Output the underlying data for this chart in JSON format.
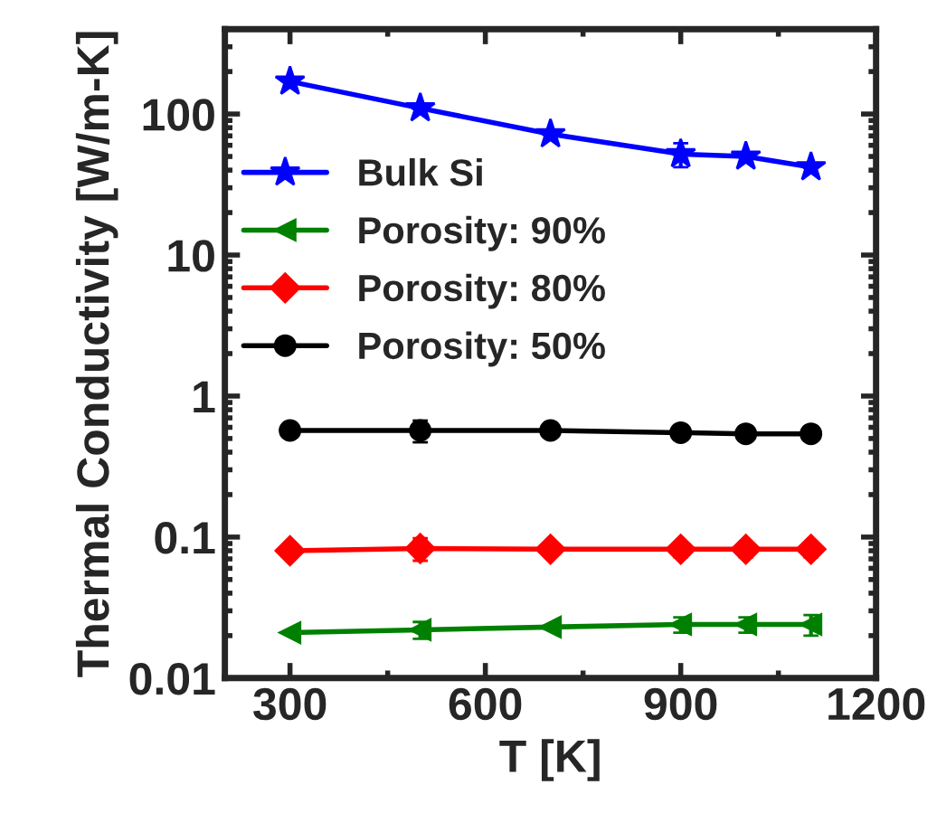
{
  "chart_data": {
    "type": "line",
    "xlabel": "T [K]",
    "ylabel": "Thermal Conductivity [W/m-K]",
    "log": "y",
    "x": [
      300,
      500,
      700,
      900,
      1000,
      1100
    ],
    "xlim": [
      200,
      1200
    ],
    "xticks": [
      300,
      600,
      900,
      1200
    ],
    "ylim": [
      0.01,
      400
    ],
    "yticks": [
      {
        "value": 0.01,
        "label": "0.01"
      },
      {
        "value": 0.1,
        "label": "0.1"
      },
      1,
      10,
      100
    ],
    "grid": false,
    "legend": "top left",
    "series": [
      {
        "name": "Bulk Si",
        "color": "#0000ff",
        "marker": "star",
        "values": [
          170,
          110,
          72,
          52,
          50,
          42
        ],
        "errors": [
          null,
          null,
          null,
          10,
          null,
          null
        ]
      },
      {
        "name": "Porosity: 90%",
        "color": "#008000",
        "marker": "triangle",
        "values": [
          0.021,
          0.022,
          0.023,
          0.024,
          0.024,
          0.024
        ],
        "errors": [
          null,
          0.003,
          null,
          0.003,
          0.003,
          0.004
        ]
      },
      {
        "name": "Porosity: 80%",
        "color": "#ff0000",
        "marker": "diamond",
        "values": [
          0.08,
          0.083,
          0.082,
          0.082,
          0.082,
          0.082
        ],
        "errors": [
          null,
          0.015,
          null,
          0.01,
          0.01,
          0.01
        ]
      },
      {
        "name": "Porosity: 50%",
        "color": "#000000",
        "marker": "circle",
        "values": [
          0.57,
          0.57,
          0.57,
          0.55,
          0.54,
          0.54
        ],
        "errors": [
          null,
          0.1,
          0.06,
          0.06,
          0.06,
          0.06
        ]
      }
    ]
  }
}
